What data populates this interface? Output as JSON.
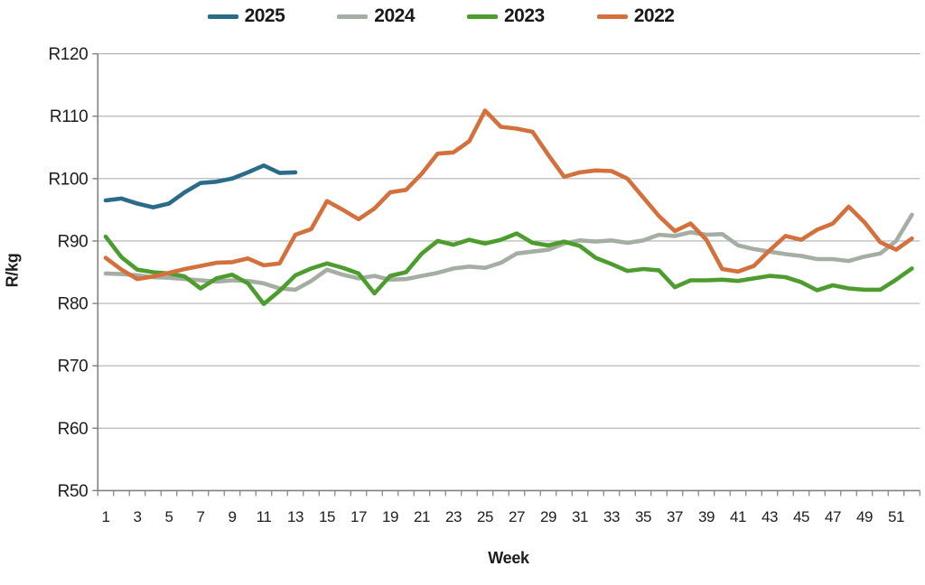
{
  "chart_data": {
    "type": "line",
    "title": "",
    "xlabel": "Week",
    "ylabel": "R/kg",
    "ylim": [
      50,
      120
    ],
    "y_tick_step": 10,
    "y_tick_labels": [
      "R50",
      "R60",
      "R70",
      "R80",
      "R90",
      "R100",
      "R110",
      "R120"
    ],
    "x_tick_labels": [
      "1",
      "3",
      "5",
      "7",
      "9",
      "11",
      "13",
      "15",
      "17",
      "19",
      "21",
      "23",
      "25",
      "27",
      "29",
      "31",
      "33",
      "35",
      "37",
      "39",
      "41",
      "43",
      "45",
      "47",
      "49",
      "51"
    ],
    "x_range": [
      1,
      52
    ],
    "grid": "horizontal",
    "legend_position": "top",
    "colors": {
      "grid": "#b0b0b0",
      "axis": "#808080",
      "text": "#1d1d1d"
    },
    "series": [
      {
        "name": "2025",
        "color": "#2a6b8a",
        "x_start": 1,
        "values": [
          96.5,
          96.8,
          96.0,
          95.4,
          96.0,
          97.8,
          99.3,
          99.5,
          100.0,
          101.0,
          102.1,
          100.9,
          101.0
        ]
      },
      {
        "name": "2024",
        "color": "#a4aea3",
        "x_start": 1,
        "values": [
          84.8,
          84.7,
          84.5,
          84.2,
          84.1,
          83.9,
          83.7,
          83.5,
          83.7,
          83.6,
          83.2,
          82.4,
          82.2,
          83.6,
          85.4,
          84.6,
          84.0,
          84.4,
          83.8,
          83.9,
          84.4,
          84.9,
          85.6,
          85.9,
          85.7,
          86.5,
          88.0,
          88.3,
          88.6,
          89.6,
          90.1,
          89.9,
          90.1,
          89.7,
          90.1,
          91.0,
          90.8,
          91.4,
          91.0,
          91.1,
          89.3,
          88.7,
          88.3,
          87.9,
          87.6,
          87.1,
          87.1,
          86.8,
          87.5,
          88.0,
          90.0,
          94.2
        ]
      },
      {
        "name": "2023",
        "color": "#4c9c2e",
        "x_start": 1,
        "values": [
          90.7,
          87.4,
          85.4,
          85.0,
          84.8,
          84.3,
          82.4,
          84.0,
          84.6,
          83.2,
          79.9,
          82.0,
          84.5,
          85.6,
          86.4,
          85.7,
          84.8,
          81.6,
          84.4,
          85.0,
          88.0,
          90.0,
          89.4,
          90.2,
          89.6,
          90.2,
          91.2,
          89.7,
          89.3,
          89.9,
          89.2,
          87.3,
          86.3,
          85.2,
          85.5,
          85.3,
          82.6,
          83.7,
          83.7,
          83.8,
          83.6,
          84.0,
          84.4,
          84.2,
          83.4,
          82.1,
          82.9,
          82.4,
          82.2,
          82.2,
          83.8,
          85.6
        ]
      },
      {
        "name": "2022",
        "color": "#d3703c",
        "x_start": 1,
        "values": [
          87.3,
          85.4,
          83.9,
          84.3,
          84.9,
          85.5,
          86.0,
          86.5,
          86.6,
          87.2,
          86.1,
          86.4,
          91.0,
          91.9,
          96.4,
          95.0,
          93.5,
          95.2,
          97.8,
          98.2,
          100.8,
          104.0,
          104.2,
          106.0,
          110.9,
          108.3,
          108.0,
          107.5,
          103.8,
          100.3,
          101.0,
          101.3,
          101.2,
          100.0,
          97.0,
          94.0,
          91.6,
          92.8,
          90.2,
          85.5,
          85.1,
          86.0,
          88.5,
          90.8,
          90.2,
          91.8,
          92.8,
          95.5,
          93.0,
          89.8,
          88.6,
          90.4
        ]
      }
    ]
  }
}
